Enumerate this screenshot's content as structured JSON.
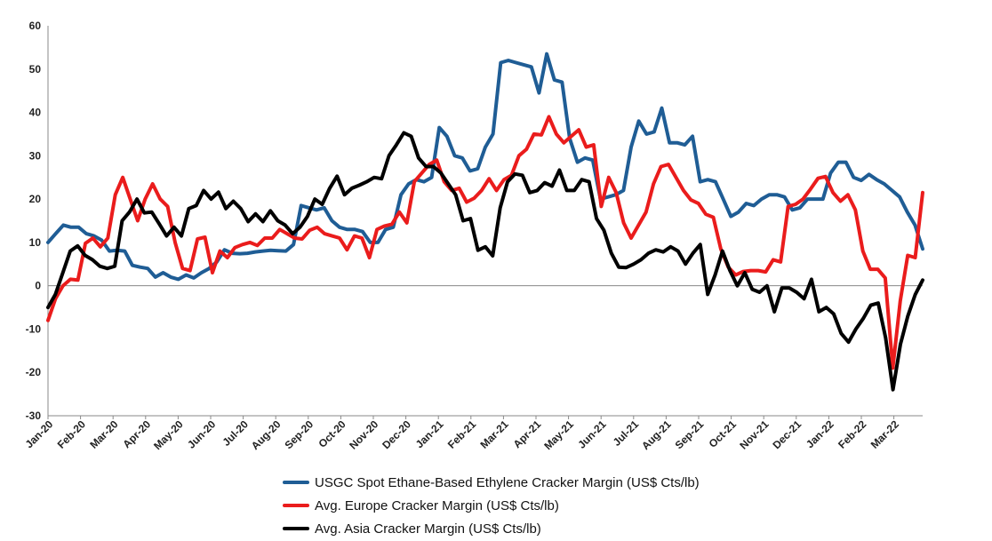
{
  "chart_data": {
    "type": "line",
    "title": "",
    "xlabel": "",
    "ylabel": "",
    "ylim": [
      -30,
      60
    ],
    "yticks": [
      60,
      50,
      40,
      30,
      20,
      10,
      0,
      -10,
      -20,
      -30
    ],
    "grid": false,
    "legend_position": "bottom",
    "x_tick_labels": [
      "Jan-20",
      "Feb-20",
      "Mar-20",
      "Apr-20",
      "May-20",
      "Jun-20",
      "Jul-20",
      "Aug-20",
      "Sep-20",
      "Oct-20",
      "Nov-20",
      "Dec-20",
      "Jan-21",
      "Feb-21",
      "Mar-21",
      "Apr-21",
      "May-21",
      "Jun-21",
      "Jul-21",
      "Aug-21",
      "Sep-21",
      "Oct-21",
      "Nov-21",
      "Dec-21",
      "Jan-22",
      "Feb-22",
      "Mar-22"
    ],
    "series": [
      {
        "name": "USGC Spot Ethane-Based Ethylene Cracker Margin (US$ Cts/lb)",
        "color": "#1f5d95",
        "values": [
          10,
          12,
          14,
          13.5,
          13.5,
          12,
          11.5,
          10.5,
          8,
          8.2,
          8,
          4.7,
          4.3,
          4,
          2,
          3,
          2,
          1.5,
          2.5,
          1.8,
          3,
          4,
          5.5,
          8.3,
          7.5,
          7.4,
          7.5,
          7.8,
          8,
          8.2,
          8.1,
          8,
          9.5,
          18.5,
          18,
          17.5,
          18,
          15,
          13.5,
          13,
          13,
          12.5,
          10,
          10,
          13,
          13.5,
          21,
          23.5,
          24.5,
          24,
          25,
          36.5,
          34.5,
          30,
          29.5,
          26.5,
          27,
          32,
          35,
          51.5,
          52,
          51.5,
          51,
          50.5,
          44.5,
          53.5,
          47.5,
          47,
          34,
          28.5,
          29.5,
          29,
          20,
          20.5,
          21,
          22,
          32,
          38,
          35,
          35.5,
          41,
          33,
          33,
          32.5,
          34.5,
          24,
          24.5,
          24,
          20,
          16,
          17,
          19,
          18.5,
          20,
          21,
          21,
          20.5,
          17.5,
          18,
          20,
          20,
          20,
          26,
          28.5,
          28.5,
          25,
          24.3,
          25.7,
          24.5,
          23.5,
          22,
          20.5,
          17,
          14,
          8.5
        ]
      },
      {
        "name": "Avg. Europe Cracker Margin (US$ Cts/lb)",
        "color": "#ea1c1c",
        "values": [
          -8,
          -3,
          0,
          1.5,
          1.3,
          9.8,
          11,
          9,
          11,
          21,
          25,
          20,
          15,
          20,
          23.5,
          20,
          18.3,
          10,
          4,
          3.5,
          10.8,
          11.2,
          3,
          8,
          6.5,
          8.8,
          9.5,
          10,
          9.3,
          11,
          11,
          13,
          12,
          11,
          10.8,
          12.8,
          13.5,
          12,
          11.5,
          11,
          8.3,
          11.5,
          11,
          6.5,
          13,
          13.8,
          14.2,
          17,
          14.5,
          24,
          26,
          28,
          29,
          24,
          22,
          22.5,
          19.3,
          20.2,
          22,
          24.7,
          22,
          24.5,
          25.5,
          30,
          31.5,
          35,
          34.8,
          39,
          35,
          33,
          34.5,
          36,
          32,
          32.5,
          18.3,
          25,
          21.5,
          14.5,
          11,
          14,
          17,
          23.5,
          27.5,
          28,
          25,
          22,
          19.8,
          19,
          16.5,
          15.8,
          8.5,
          4.3,
          2.5,
          3.3,
          3.5,
          3.5,
          3.2,
          6,
          5.5,
          18.3,
          18.8,
          20,
          22.3,
          24.8,
          25.2,
          21.5,
          19.5,
          21,
          17.5,
          8,
          3.8,
          3.8,
          1.8,
          -19,
          -3.5,
          7,
          6.5,
          21.5
        ]
      },
      {
        "name": "Avg. Asia Cracker Margin (US$ Cts/lb)",
        "color": "#000000",
        "values": [
          -5,
          -2,
          3,
          8,
          9.2,
          7,
          6,
          4.5,
          4,
          4.5,
          15,
          17,
          20,
          16.8,
          17,
          14.3,
          11.5,
          13.5,
          11.5,
          17.8,
          18.5,
          22,
          20,
          21.6,
          17.8,
          19.5,
          17.8,
          14.8,
          16.6,
          14.8,
          17.3,
          15,
          14,
          12,
          13.5,
          16,
          20,
          18.8,
          22.5,
          25.3,
          21,
          22.5,
          23.2,
          24,
          25,
          24.7,
          30,
          32.5,
          35.3,
          34.5,
          29.5,
          27.5,
          27.5,
          26,
          23.5,
          21,
          15,
          15.5,
          8.2,
          9,
          6.9,
          18,
          24,
          25.8,
          25.5,
          21.5,
          22,
          23.8,
          23,
          26.7,
          22,
          22,
          24.5,
          24,
          15.5,
          12.8,
          7.5,
          4.3,
          4.2,
          5,
          6,
          7.5,
          8.3,
          7.8,
          9,
          8,
          5,
          7.5,
          9.5,
          -2,
          2.5,
          8,
          3.5,
          0,
          3,
          -0.8,
          -1.5,
          0,
          -6,
          -0.5,
          -0.5,
          -1.5,
          -3,
          1.5,
          -6,
          -5,
          -6.5,
          -11,
          -13,
          -10,
          -7.5,
          -4.5,
          -4,
          -12,
          -24,
          -13.5,
          -7,
          -2,
          1.3
        ]
      }
    ]
  },
  "legend_items": [
    "USGC Spot Ethane-Based Ethylene Cracker Margin (US$ Cts/lb)",
    "Avg. Europe Cracker Margin (US$ Cts/lb)",
    "Avg. Asia Cracker Margin (US$ Cts/lb)"
  ]
}
